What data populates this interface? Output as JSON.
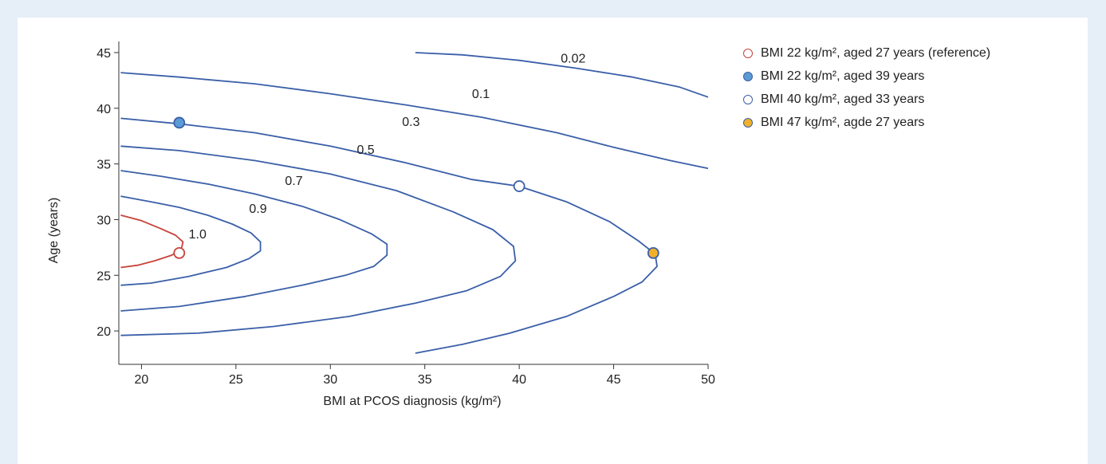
{
  "chart_data": {
    "type": "line",
    "subtype": "contour",
    "xlabel": "BMI at PCOS diagnosis (kg/m²)",
    "ylabel": "Age (years)",
    "xlim": [
      18.8,
      50
    ],
    "ylim": [
      17,
      46
    ],
    "x_ticks": [
      20,
      25,
      30,
      35,
      40,
      45,
      50
    ],
    "y_ticks": [
      20,
      25,
      30,
      35,
      40,
      45
    ],
    "grid": false,
    "legend_position": "right",
    "series": [
      {
        "name": "1.0",
        "color": "#c8423a",
        "label_point": [
          22.5,
          28.3
        ],
        "points": [
          [
            18.9,
            30.4
          ],
          [
            20,
            29.9
          ],
          [
            21,
            29.2
          ],
          [
            21.8,
            28.6
          ],
          [
            22.2,
            28.0
          ],
          [
            22.1,
            27.3
          ],
          [
            21.6,
            26.8
          ],
          [
            20.7,
            26.3
          ],
          [
            19.8,
            25.9
          ],
          [
            18.9,
            25.7
          ]
        ]
      },
      {
        "name": "0.9",
        "color": "#3a5fa8",
        "label_point": [
          25.7,
          30.6
        ],
        "points": [
          [
            18.9,
            32.1
          ],
          [
            20.5,
            31.6
          ],
          [
            22,
            31.1
          ],
          [
            23.5,
            30.4
          ],
          [
            24.8,
            29.6
          ],
          [
            25.8,
            28.8
          ],
          [
            26.3,
            28.0
          ],
          [
            26.3,
            27.2
          ],
          [
            25.7,
            26.5
          ],
          [
            24.5,
            25.7
          ],
          [
            22.5,
            24.9
          ],
          [
            20.5,
            24.3
          ],
          [
            18.9,
            24.1
          ]
        ]
      },
      {
        "name": "0.7",
        "color": "#3a5fa8",
        "label_point": [
          27.6,
          33.1
        ],
        "points": [
          [
            18.9,
            34.4
          ],
          [
            21,
            33.9
          ],
          [
            23.5,
            33.2
          ],
          [
            26,
            32.3
          ],
          [
            28.5,
            31.2
          ],
          [
            30.5,
            30.0
          ],
          [
            32.2,
            28.7
          ],
          [
            33.0,
            27.8
          ],
          [
            33.0,
            26.8
          ],
          [
            32.3,
            25.8
          ],
          [
            30.8,
            25.0
          ],
          [
            28.5,
            24.1
          ],
          [
            25.5,
            23.1
          ],
          [
            22,
            22.2
          ],
          [
            18.9,
            21.8
          ]
        ]
      },
      {
        "name": "0.5",
        "color": "#3a5fa8",
        "label_point": [
          31.4,
          35.9
        ],
        "points": [
          [
            18.9,
            36.6
          ],
          [
            22,
            36.2
          ],
          [
            26,
            35.3
          ],
          [
            30,
            34.1
          ],
          [
            33.5,
            32.6
          ],
          [
            36.5,
            30.7
          ],
          [
            38.6,
            29.1
          ],
          [
            39.7,
            27.6
          ],
          [
            39.8,
            26.3
          ],
          [
            39.0,
            24.9
          ],
          [
            37.2,
            23.6
          ],
          [
            34.5,
            22.5
          ],
          [
            31,
            21.3
          ],
          [
            27,
            20.4
          ],
          [
            23,
            19.8
          ],
          [
            18.9,
            19.6
          ]
        ]
      },
      {
        "name": "0.3",
        "color": "#3a5fa8",
        "label_point": [
          33.8,
          38.4
        ],
        "points": [
          [
            18.9,
            39.1
          ],
          [
            22,
            38.6
          ],
          [
            26,
            37.8
          ],
          [
            30,
            36.6
          ],
          [
            34,
            35.1
          ],
          [
            37.5,
            33.6
          ],
          [
            40,
            33.0
          ],
          [
            42.5,
            31.6
          ],
          [
            44.8,
            29.8
          ],
          [
            46.3,
            28.1
          ],
          [
            47.2,
            26.9
          ],
          [
            47.3,
            25.8
          ],
          [
            46.5,
            24.4
          ],
          [
            45,
            23.1
          ],
          [
            42.5,
            21.3
          ],
          [
            39.5,
            19.8
          ],
          [
            37,
            18.8
          ],
          [
            34.5,
            18.0
          ]
        ]
      },
      {
        "name": "0.1",
        "color": "#3a5fa8",
        "label_point": [
          37.5,
          40.9
        ],
        "points": [
          [
            18.9,
            43.2
          ],
          [
            22,
            42.8
          ],
          [
            26,
            42.2
          ],
          [
            30,
            41.3
          ],
          [
            34,
            40.3
          ],
          [
            38,
            39.2
          ],
          [
            42,
            37.8
          ],
          [
            45,
            36.5
          ],
          [
            48,
            35.3
          ],
          [
            50,
            34.6
          ]
        ]
      },
      {
        "name": "0.02",
        "color": "#3a5fa8",
        "label_point": [
          42.2,
          44.1
        ],
        "points": [
          [
            34.5,
            45.0
          ],
          [
            37,
            44.8
          ],
          [
            40,
            44.3
          ],
          [
            43,
            43.6
          ],
          [
            46,
            42.8
          ],
          [
            48.5,
            41.9
          ],
          [
            50,
            41.0
          ]
        ]
      }
    ],
    "points": [
      {
        "name": "BMI 22 kg/m², aged 27 years (reference)",
        "x": 22,
        "y": 27,
        "fill": "#ffffff",
        "stroke": "#c8423a"
      },
      {
        "name": "BMI 22 kg/m², aged 39 years",
        "x": 22,
        "y": 38.7,
        "fill": "#5b9bd5",
        "stroke": "#3a5fa8"
      },
      {
        "name": "BMI 40 kg/m², aged 33 years",
        "x": 40,
        "y": 33.0,
        "fill": "#ffffff",
        "stroke": "#3a5fa8"
      },
      {
        "name": "BMI 47 kg/m², agde 27 years",
        "x": 47.1,
        "y": 27.0,
        "fill": "#f0b02a",
        "stroke": "#3a5fa8"
      }
    ]
  }
}
